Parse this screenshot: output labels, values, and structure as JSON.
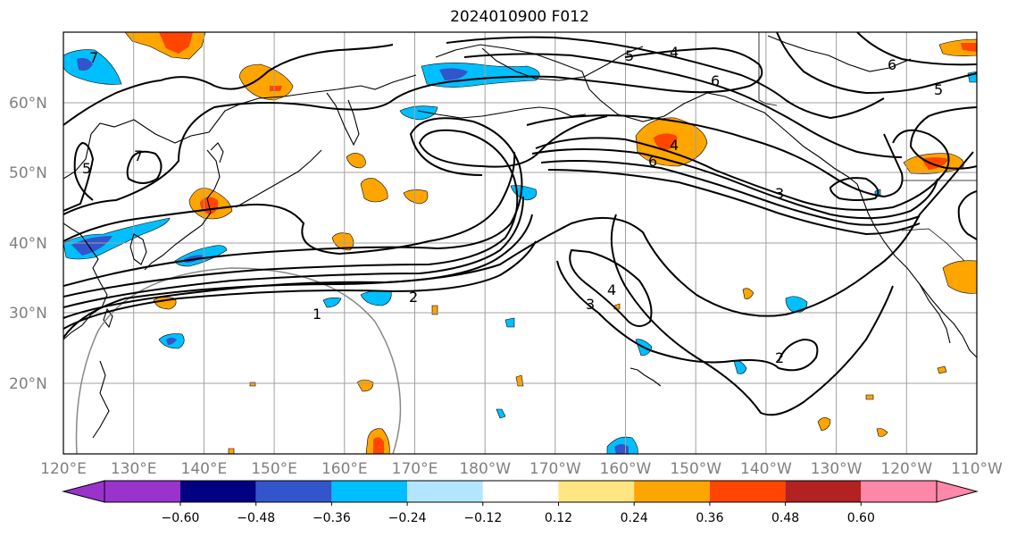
{
  "title": "2024010900 F012",
  "map": {
    "lat_labels": [
      "60°N",
      "50°N",
      "40°N",
      "30°N",
      "20°N"
    ],
    "lon_labels": [
      "120°E",
      "130°E",
      "140°E",
      "150°E",
      "160°E",
      "170°E",
      "180°W",
      "170°W",
      "160°W",
      "150°W",
      "140°W",
      "130°W",
      "120°W",
      "110°W"
    ],
    "contour_labels": [
      "1",
      "2",
      "3",
      "4",
      "5",
      "6",
      "7",
      "4",
      "5",
      "6",
      "3",
      "4",
      "2",
      "7",
      "6",
      "5"
    ]
  },
  "colorbar": {
    "ticks": [
      "−0.60",
      "−0.48",
      "−0.36",
      "−0.24",
      "−0.12",
      "0.12",
      "0.24",
      "0.36",
      "0.48",
      "0.60"
    ],
    "colors": [
      "#9933cc",
      "#000080",
      "#3355cc",
      "#00bfff",
      "#b3e5ff",
      "#ffffff",
      "#ffe680",
      "#ffa500",
      "#ff4500",
      "#b22222",
      "#ff88aa"
    ]
  }
}
